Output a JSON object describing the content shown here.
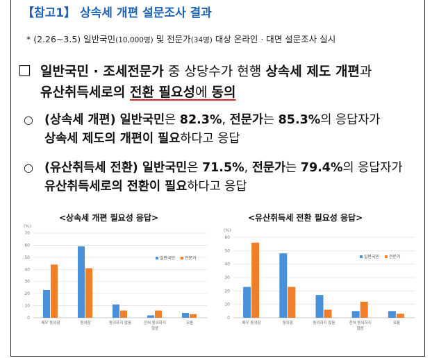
{
  "header": {
    "title": "【참고1】 상속세 개편 설문조사 결과"
  },
  "note": {
    "prefix": "* (2.26~3.5) 일반국민",
    "public_count": "(10,000명)",
    "mid": " 및 전문가",
    "expert_count": "(34명)",
    "suffix": " 대상 온라인 · 대면 설문조사 실시"
  },
  "main": {
    "bullet": "□",
    "p1": "일반국민 · 조세전문가",
    "p2": " 중 상당수가 현행 ",
    "p3": "상속세 제도 개편",
    "p4": "과",
    "p5": "유산취득세로의 ",
    "p6": "전환 필요성",
    "p7": "에 ",
    "p8": "동의"
  },
  "items": [
    {
      "bullet": "○",
      "a": "(상속세 개편) 일반국민",
      "b": "은 ",
      "c": "82.3%",
      "d": ", ",
      "e": "전문가",
      "f": "는 ",
      "g": "85.3%",
      "h": "의 응답자가",
      "i": "상속세 제도의 개편이 필요",
      "j": "하다고 응답"
    },
    {
      "bullet": "○",
      "a": "(유산취득세 전환) 일반국민",
      "b": "은 ",
      "c": "71.5%",
      "d": ", ",
      "e": "전문가",
      "f": "는 ",
      "g": "79.4%",
      "h": "의 응답자가",
      "i": "유산취득세로의 전환이 필요",
      "j": "하다고 응답"
    }
  ],
  "chart_data": [
    {
      "type": "bar",
      "title": "<상속세 개편 필요성 응답>",
      "ylabel": "(%)",
      "ylim": [
        0,
        70
      ],
      "yticks": [
        "0",
        "10",
        "20",
        "30",
        "40",
        "50",
        "60",
        "70"
      ],
      "categories": [
        "매우 동의함",
        "동의함",
        "동의하지 않음",
        "전혀 동의하지 않음",
        "모름"
      ],
      "series": [
        {
          "name": "일반국민",
          "color": "#4a90d9",
          "values": [
            23,
            59,
            11,
            2,
            4
          ]
        },
        {
          "name": "전문가",
          "color": "#f07f2a",
          "values": [
            44,
            41,
            6,
            6,
            3
          ]
        }
      ],
      "legend": "right"
    },
    {
      "type": "bar",
      "title": "<유산취득세 전환 필요성 응답>",
      "ylabel": "(%)",
      "ylim": [
        0,
        60
      ],
      "yticks": [
        "0",
        "10",
        "20",
        "30",
        "40",
        "50",
        "60"
      ],
      "categories": [
        "매우 동의함",
        "동의함",
        "동의하지 않음",
        "전혀 동의하지 않음",
        "모름"
      ],
      "series": [
        {
          "name": "일반국민",
          "color": "#4a90d9",
          "values": [
            23,
            48,
            17,
            5,
            5
          ]
        },
        {
          "name": "전문가",
          "color": "#f07f2a",
          "values": [
            56,
            23,
            6,
            12,
            3
          ]
        }
      ],
      "legend": "right"
    }
  ]
}
